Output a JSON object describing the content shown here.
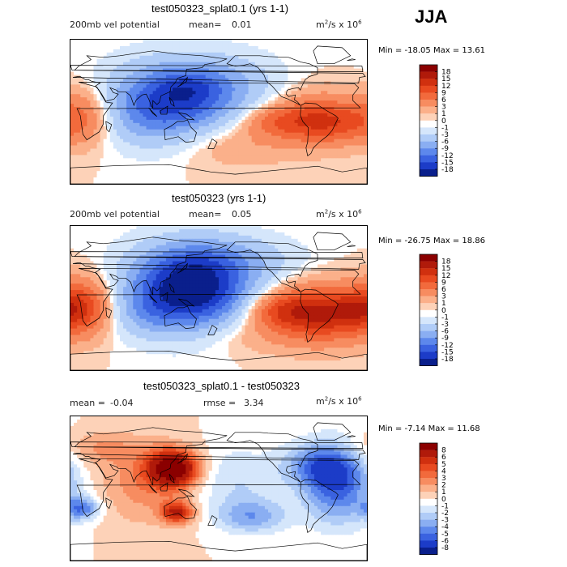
{
  "season": "JJA",
  "panels": [
    {
      "title": "test050323_splat0.1 (yrs 1-1)",
      "left_label": "200mb vel potential",
      "stat1_label": "mean=",
      "stat1_value": "0.01",
      "stat2_label": "",
      "stat2_value": "",
      "units_base": "m",
      "units_exp1": "2",
      "units_mid": "/s x 10",
      "units_exp2": "6",
      "min_label": "Min =",
      "min_value": "-18.05",
      "max_label": "Max =",
      "max_value": "13.61",
      "colorbar_levels": [
        "18",
        "15",
        "12",
        "9",
        "6",
        "3",
        "1",
        "0",
        "-1",
        "-3",
        "-6",
        "-9",
        "-12",
        "-15",
        "-18"
      ]
    },
    {
      "title": "test050323 (yrs 1-1)",
      "left_label": "200mb vel potential",
      "stat1_label": "mean=",
      "stat1_value": "0.05",
      "stat2_label": "",
      "stat2_value": "",
      "units_base": "m",
      "units_exp1": "2",
      "units_mid": "/s x 10",
      "units_exp2": "6",
      "min_label": "Min =",
      "min_value": "-26.75",
      "max_label": "Max =",
      "max_value": "18.86",
      "colorbar_levels": [
        "18",
        "15",
        "12",
        "9",
        "6",
        "3",
        "1",
        "0",
        "-1",
        "-3",
        "-6",
        "-9",
        "-12",
        "-15",
        "-18"
      ]
    },
    {
      "title": "test050323_splat0.1 - test050323",
      "left_label": "",
      "stat1_label": "mean =",
      "stat1_value": "-0.04",
      "stat2_label": "rmse =",
      "stat2_value": "3.34",
      "units_base": "m",
      "units_exp1": "2",
      "units_mid": "/s x 10",
      "units_exp2": "6",
      "min_label": "Min =",
      "min_value": "-7.14",
      "max_label": "Max =",
      "max_value": "11.68",
      "colorbar_levels": [
        "8",
        "6",
        "5",
        "4",
        "3",
        "2",
        "1",
        "0",
        "-1",
        "-2",
        "-3",
        "-4",
        "-5",
        "-6",
        "-8"
      ]
    }
  ],
  "colors": {
    "palette_warm_to_cold": [
      "#8b0000",
      "#b01a0a",
      "#d0300f",
      "#e84a20",
      "#f26a3c",
      "#f78c60",
      "#fbb08a",
      "#fdd2b8",
      "#ffffff",
      "#d5e6fb",
      "#b0ccf7",
      "#8aaef2",
      "#5d88ec",
      "#3a62e0",
      "#1c3cc8",
      "#0a1f8c"
    ]
  },
  "chart_data": [
    {
      "type": "heatmap",
      "title": "test050323_splat0.1 (yrs 1-1)",
      "variable": "200mb vel potential",
      "units": "m2/s x 10^6",
      "mean": 0.01,
      "min": -18.05,
      "max": 13.61,
      "contour_levels": [
        -18,
        -15,
        -12,
        -9,
        -6,
        -3,
        -1,
        0,
        1,
        3,
        6,
        9,
        12,
        15,
        18
      ],
      "fields": [
        {
          "lon": 130,
          "lat": 18,
          "sx": 55,
          "sy": 32,
          "value": -14.0
        },
        {
          "lon": 145,
          "lat": 30,
          "sx": 28,
          "sy": 16,
          "value": -4.0
        },
        {
          "lon": 95,
          "lat": -8,
          "sx": 40,
          "sy": 28,
          "value": -4.0
        },
        {
          "lon": 205,
          "lat": 40,
          "sx": 40,
          "sy": 25,
          "value": -2.5
        },
        {
          "lon": 300,
          "lat": -10,
          "sx": 35,
          "sy": 22,
          "value": 10.0
        },
        {
          "lon": 330,
          "lat": -15,
          "sx": 25,
          "sy": 15,
          "value": 3.5
        },
        {
          "lon": 250,
          "lat": -12,
          "sx": 30,
          "sy": 14,
          "value": 6.0
        },
        {
          "lon": 15,
          "lat": -5,
          "sx": 25,
          "sy": 25,
          "value": 7.0
        },
        {
          "lon": 200,
          "lat": -40,
          "sx": 50,
          "sy": 20,
          "value": 3.0
        }
      ]
    },
    {
      "type": "heatmap",
      "title": "test050323 (yrs 1-1)",
      "variable": "200mb vel potential",
      "units": "m2/s x 10^6",
      "mean": 0.05,
      "min": -26.75,
      "max": 18.86,
      "contour_levels": [
        -18,
        -15,
        -12,
        -9,
        -6,
        -3,
        -1,
        0,
        1,
        3,
        6,
        9,
        12,
        15,
        18
      ],
      "fields": [
        {
          "lon": 145,
          "lat": 12,
          "sx": 50,
          "sy": 35,
          "value": -22.0
        },
        {
          "lon": 200,
          "lat": 50,
          "sx": 55,
          "sy": 20,
          "value": -4.0
        },
        {
          "lon": 90,
          "lat": -20,
          "sx": 30,
          "sy": 20,
          "value": -3.0
        },
        {
          "lon": 305,
          "lat": -20,
          "sx": 40,
          "sy": 25,
          "value": 13.0
        },
        {
          "lon": 340,
          "lat": -15,
          "sx": 25,
          "sy": 15,
          "value": 4.0
        },
        {
          "lon": 255,
          "lat": -15,
          "sx": 30,
          "sy": 16,
          "value": 8.0
        },
        {
          "lon": 15,
          "lat": -10,
          "sx": 25,
          "sy": 25,
          "value": 10.0
        },
        {
          "lon": 210,
          "lat": -45,
          "sx": 50,
          "sy": 18,
          "value": 2.5
        }
      ]
    },
    {
      "type": "heatmap",
      "title": "test050323_splat0.1 - test050323",
      "variable": "200mb vel potential",
      "units": "m2/s x 10^6",
      "mean": -0.04,
      "rmse": 3.34,
      "min": -7.14,
      "max": 11.68,
      "contour_levels": [
        -8,
        -6,
        -5,
        -4,
        -3,
        -2,
        -1,
        0,
        1,
        2,
        3,
        4,
        5,
        6,
        8
      ],
      "fields": [
        {
          "lon": 125,
          "lat": 25,
          "sx": 22,
          "sy": 16,
          "value": 9.5
        },
        {
          "lon": 130,
          "lat": -30,
          "sx": 14,
          "sy": 10,
          "value": 6.0
        },
        {
          "lon": 90,
          "lat": 5,
          "sx": 40,
          "sy": 35,
          "value": 2.5
        },
        {
          "lon": 200,
          "lat": 10,
          "sx": 40,
          "sy": 30,
          "value": -2.0
        },
        {
          "lon": 325,
          "lat": 5,
          "sx": 30,
          "sy": 35,
          "value": -5.5
        },
        {
          "lon": 300,
          "lat": 30,
          "sx": 30,
          "sy": 20,
          "value": -3.5
        },
        {
          "lon": 15,
          "lat": -25,
          "sx": 15,
          "sy": 10,
          "value": -4.5
        },
        {
          "lon": 220,
          "lat": -35,
          "sx": 30,
          "sy": 15,
          "value": -3.5
        },
        {
          "lon": 30,
          "lat": 50,
          "sx": 40,
          "sy": 15,
          "value": 2.0
        }
      ]
    }
  ]
}
